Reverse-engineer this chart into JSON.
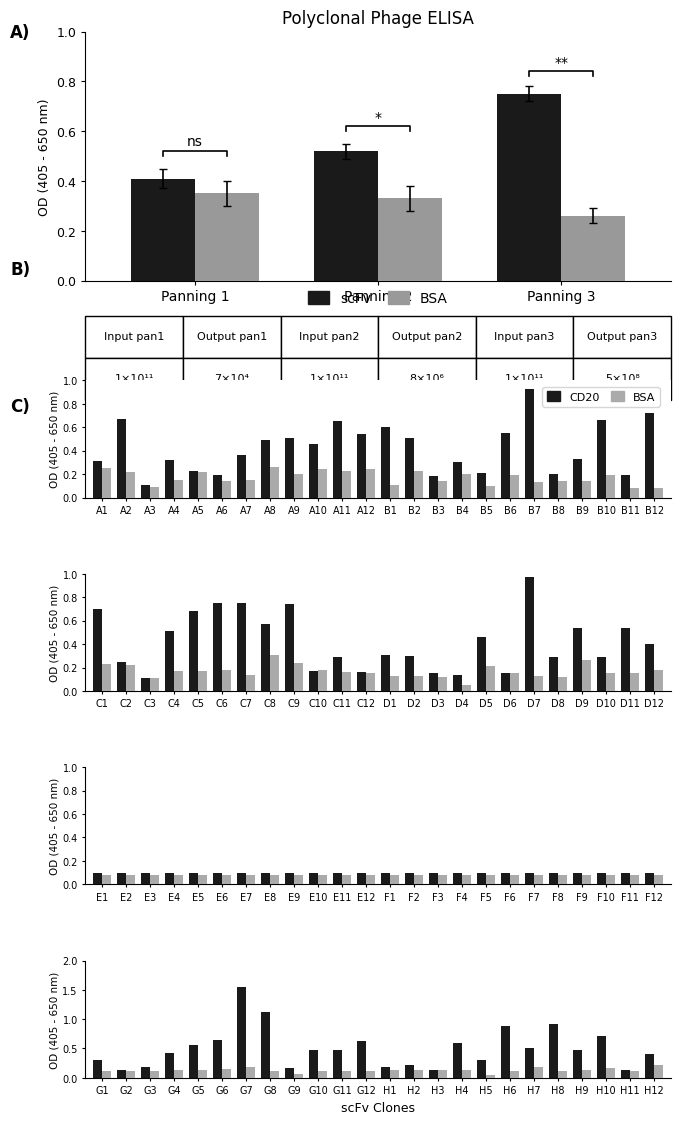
{
  "title_A": "Polyclonal Phage ELISA",
  "panelA": {
    "groups": [
      "Panning 1",
      "Panning 2",
      "Panning 3"
    ],
    "scFv_vals": [
      0.41,
      0.52,
      0.75
    ],
    "scFv_err": [
      0.04,
      0.03,
      0.03
    ],
    "BSA_vals": [
      0.35,
      0.33,
      0.26
    ],
    "BSA_err": [
      0.05,
      0.05,
      0.03
    ],
    "ylim": [
      0.0,
      1.0
    ],
    "yticks": [
      0.0,
      0.2,
      0.4,
      0.6,
      0.8,
      1.0
    ],
    "ylabel": "OD (405 - 650 nm)",
    "bar_color_scFv": "#1a1a1a",
    "bar_color_BSA": "#999999"
  },
  "panelB": {
    "headers": [
      "Input pan1",
      "Output pan1",
      "Input pan2",
      "Output pan2",
      "Input pan3",
      "Output pan3"
    ],
    "values": [
      "1×10¹¹",
      "7×10⁴",
      "1×10¹¹",
      "8×10⁶",
      "1×10¹¹",
      "5×10⁸"
    ]
  },
  "panelC": {
    "ylabel": "OD (405 - 650 nm)",
    "xlabel": "scFv Clones",
    "ylim_rows": [
      1.0,
      1.0,
      1.0,
      2.0
    ],
    "yticks_rows": [
      [
        0.0,
        0.2,
        0.4,
        0.6,
        0.8,
        1.0
      ],
      [
        0.0,
        0.2,
        0.4,
        0.6,
        0.8,
        1.0
      ],
      [
        0.0,
        0.2,
        0.4,
        0.6,
        0.8,
        1.0
      ],
      [
        0.0,
        0.5,
        1.0,
        1.5,
        2.0
      ]
    ],
    "bar_color_CD20": "#1a1a1a",
    "bar_color_BSA": "#aaaaaa",
    "rows": [
      {
        "labels": [
          "A1",
          "A2",
          "A3",
          "A4",
          "A5",
          "A6",
          "A7",
          "A8",
          "A9",
          "A10",
          "A11",
          "A12",
          "B1",
          "B2",
          "B3",
          "B4",
          "B5",
          "B6",
          "B7",
          "B8",
          "B9",
          "B10",
          "B11",
          "B12"
        ],
        "CD20": [
          0.31,
          0.67,
          0.11,
          0.32,
          0.23,
          0.19,
          0.36,
          0.49,
          0.51,
          0.46,
          0.65,
          0.54,
          0.6,
          0.51,
          0.18,
          0.3,
          0.21,
          0.55,
          0.93,
          0.2,
          0.33,
          0.66,
          0.19,
          0.72
        ],
        "BSA": [
          0.25,
          0.22,
          0.09,
          0.15,
          0.22,
          0.14,
          0.15,
          0.26,
          0.2,
          0.24,
          0.23,
          0.24,
          0.11,
          0.23,
          0.14,
          0.2,
          0.1,
          0.19,
          0.13,
          0.14,
          0.14,
          0.19,
          0.08,
          0.08
        ]
      },
      {
        "labels": [
          "C1",
          "C2",
          "C3",
          "C4",
          "C5",
          "C6",
          "C7",
          "C8",
          "C9",
          "C10",
          "C11",
          "C12",
          "D1",
          "D2",
          "D3",
          "D4",
          "D5",
          "D6",
          "D7",
          "D8",
          "D9",
          "D10",
          "D11",
          "D12"
        ],
        "CD20": [
          0.7,
          0.25,
          0.11,
          0.51,
          0.68,
          0.75,
          0.75,
          0.57,
          0.74,
          0.17,
          0.29,
          0.16,
          0.31,
          0.3,
          0.15,
          0.14,
          0.46,
          0.15,
          0.97,
          0.29,
          0.54,
          0.29,
          0.54,
          0.4
        ],
        "BSA": [
          0.23,
          0.22,
          0.11,
          0.17,
          0.17,
          0.18,
          0.14,
          0.31,
          0.24,
          0.18,
          0.16,
          0.15,
          0.13,
          0.13,
          0.12,
          0.05,
          0.21,
          0.15,
          0.13,
          0.12,
          0.26,
          0.15,
          0.15,
          0.18
        ]
      },
      {
        "labels": [
          "E1",
          "E2",
          "E3",
          "E4",
          "E5",
          "E6",
          "E7",
          "E8",
          "E9",
          "E10",
          "E11",
          "E12",
          "F1",
          "F2",
          "F3",
          "F4",
          "F5",
          "F6",
          "F7",
          "F8",
          "F9",
          "F10",
          "F11",
          "F12"
        ],
        "CD20": [
          0.1,
          0.1,
          0.1,
          0.1,
          0.1,
          0.1,
          0.1,
          0.1,
          0.1,
          0.1,
          0.1,
          0.1,
          0.1,
          0.1,
          0.1,
          0.1,
          0.1,
          0.1,
          0.1,
          0.1,
          0.1,
          0.1,
          0.1,
          0.1
        ],
        "BSA": [
          0.08,
          0.08,
          0.08,
          0.08,
          0.08,
          0.08,
          0.08,
          0.08,
          0.08,
          0.08,
          0.08,
          0.08,
          0.08,
          0.08,
          0.08,
          0.08,
          0.08,
          0.08,
          0.08,
          0.08,
          0.08,
          0.08,
          0.08,
          0.08
        ]
      },
      {
        "labels": [
          "G1",
          "G2",
          "G3",
          "G4",
          "G5",
          "G6",
          "G7",
          "G8",
          "G9",
          "G10",
          "G11",
          "G12",
          "H1",
          "H2",
          "H3",
          "H4",
          "H5",
          "H6",
          "H7",
          "H8",
          "H9",
          "H10",
          "H11",
          "H12"
        ],
        "CD20": [
          0.3,
          0.14,
          0.19,
          0.42,
          0.56,
          0.65,
          1.55,
          1.12,
          0.17,
          0.48,
          0.47,
          0.63,
          0.18,
          0.21,
          0.14,
          0.6,
          0.3,
          0.88,
          0.51,
          0.91,
          0.47,
          0.72,
          0.14,
          0.4
        ],
        "BSA": [
          0.11,
          0.12,
          0.12,
          0.13,
          0.14,
          0.15,
          0.19,
          0.12,
          0.06,
          0.12,
          0.11,
          0.12,
          0.13,
          0.14,
          0.14,
          0.14,
          0.04,
          0.12,
          0.18,
          0.12,
          0.13,
          0.16,
          0.12,
          0.22
        ]
      }
    ]
  }
}
